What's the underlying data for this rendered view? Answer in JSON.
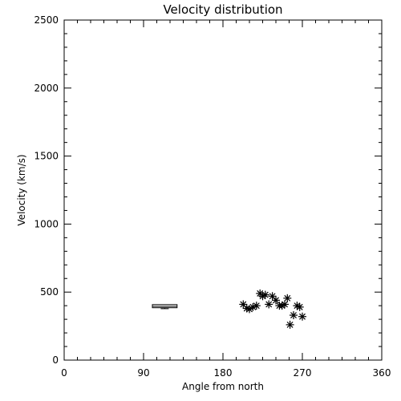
{
  "chart_data": {
    "type": "scatter",
    "title": "Velocity distribution",
    "xlabel": "Angle from north",
    "ylabel": "Velocity (km/s)",
    "xlim": [
      0,
      360
    ],
    "ylim": [
      0,
      2500
    ],
    "xticks": [
      0,
      90,
      180,
      270,
      360
    ],
    "yticks": [
      0,
      500,
      1000,
      1500,
      2000,
      2500
    ],
    "grid": false,
    "marker": "asterisk",
    "points": [
      {
        "x": 203,
        "y": 410
      },
      {
        "x": 207,
        "y": 380
      },
      {
        "x": 210,
        "y": 375
      },
      {
        "x": 214,
        "y": 390
      },
      {
        "x": 218,
        "y": 400
      },
      {
        "x": 222,
        "y": 490
      },
      {
        "x": 225,
        "y": 470
      },
      {
        "x": 228,
        "y": 480
      },
      {
        "x": 232,
        "y": 410
      },
      {
        "x": 236,
        "y": 470
      },
      {
        "x": 240,
        "y": 440
      },
      {
        "x": 244,
        "y": 400
      },
      {
        "x": 247,
        "y": 400
      },
      {
        "x": 250,
        "y": 410
      },
      {
        "x": 253,
        "y": 455
      },
      {
        "x": 256,
        "y": 260
      },
      {
        "x": 260,
        "y": 330
      },
      {
        "x": 264,
        "y": 400
      },
      {
        "x": 267,
        "y": 390
      },
      {
        "x": 270,
        "y": 320
      }
    ],
    "box": {
      "x_min": 100,
      "x_max": 128,
      "median": 395,
      "q1": 385,
      "q3": 408,
      "whisker_low": 378
    }
  }
}
